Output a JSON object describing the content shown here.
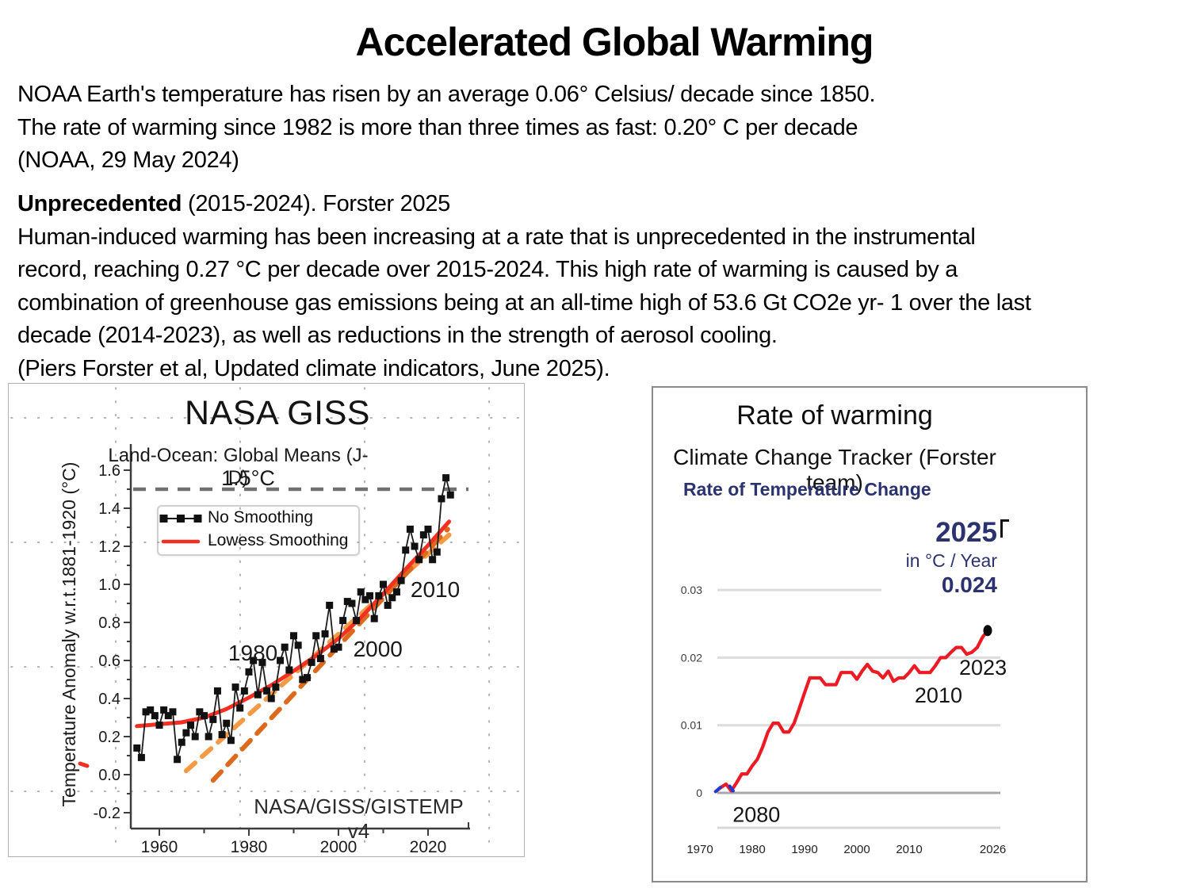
{
  "slide": {
    "title": "Accelerated Global Warming",
    "para1_lines": [
      "NOAA Earth's temperature has risen by an average 0.06° Celsius/ decade since 1850.",
      "The rate of warming since 1982 is more than three times as fast: 0.20° C per decade",
      "(NOAA, 29 May 2024)"
    ],
    "para2_lead": "Unprecedented",
    "para2_lead_rest": " (2015-2024). Forster 2025",
    "para2_lines": [
      "Human-induced warming has been increasing at a rate that is unprecedented in the instrumental",
      "record, reaching 0.27 °C per decade over 2015-2024. This high rate of warming is caused by a",
      "combination of greenhouse gas emissions being at an all-time high of 53.6 Gt CO2e yr- 1 over the last",
      "decade (2014-2023), as well as reductions in the strength of aerosol cooling.",
      "(Piers Forster et al, Updated climate indicators, June 2025)."
    ]
  },
  "chart_data": [
    {
      "type": "line",
      "title": "NASA GISS",
      "subtitle": "Land-Ocean: Global Means (J-D)",
      "threshold": {
        "label": "1.5°C",
        "value": 1.5
      },
      "ylabel": "Temperature Anomaly w.r.t.1881-1920 (°C)",
      "source_label": "NASA/GISS/GISTEMP v4",
      "legend": [
        {
          "label": "No Smoothing"
        },
        {
          "label": "Lowess Smoothing"
        }
      ],
      "xlim": [
        1953.6,
        2029.4
      ],
      "ylim": [
        -0.28,
        1.74
      ],
      "grid": "dotted-overlay",
      "xtick_labels": [
        "1960",
        "1980",
        "2000",
        "2020"
      ],
      "xtick_years": [
        1960,
        1980,
        2000,
        2020
      ],
      "xtick_minor_years": [
        1970,
        1990,
        2010
      ],
      "ytick_labels": [
        "1.6",
        "1.4",
        "1.2",
        "1.0",
        "0.8",
        "0.6",
        "0.4",
        "0.2",
        "0.0",
        "-0.2"
      ],
      "ytick_values": [
        1.6,
        1.4,
        1.2,
        1.0,
        0.8,
        0.6,
        0.4,
        0.2,
        0.0,
        -0.2
      ],
      "annotations": [
        {
          "text": "1980",
          "year": 1980.9,
          "value": 0.642
        },
        {
          "text": "2000",
          "year": 2008.8,
          "value": 0.662
        },
        {
          "text": "2010",
          "year": 2021.6,
          "value": 0.975
        }
      ],
      "series": [
        {
          "name": "No Smoothing",
          "years": [
            1955,
            1956,
            1957,
            1958,
            1959,
            1960,
            1961,
            1962,
            1963,
            1964,
            1965,
            1966,
            1967,
            1968,
            1969,
            1970,
            1971,
            1972,
            1973,
            1974,
            1975,
            1976,
            1977,
            1978,
            1979,
            1980,
            1981,
            1982,
            1983,
            1984,
            1985,
            1986,
            1987,
            1988,
            1989,
            1990,
            1991,
            1992,
            1993,
            1994,
            1995,
            1996,
            1997,
            1998,
            1999,
            2000,
            2001,
            2002,
            2003,
            2004,
            2005,
            2006,
            2007,
            2008,
            2009,
            2010,
            2011,
            2012,
            2013,
            2014,
            2015,
            2016,
            2017,
            2018,
            2019,
            2020,
            2021,
            2022,
            2023,
            2024,
            2025
          ],
          "values": [
            0.14,
            0.09,
            0.33,
            0.34,
            0.31,
            0.26,
            0.34,
            0.31,
            0.33,
            0.08,
            0.17,
            0.22,
            0.26,
            0.2,
            0.33,
            0.31,
            0.2,
            0.29,
            0.44,
            0.21,
            0.27,
            0.18,
            0.46,
            0.35,
            0.44,
            0.54,
            0.6,
            0.42,
            0.59,
            0.44,
            0.4,
            0.46,
            0.6,
            0.67,
            0.55,
            0.73,
            0.68,
            0.5,
            0.51,
            0.59,
            0.73,
            0.61,
            0.74,
            0.89,
            0.66,
            0.67,
            0.81,
            0.91,
            0.9,
            0.81,
            0.96,
            0.92,
            0.94,
            0.82,
            0.94,
            1.0,
            0.89,
            0.93,
            0.96,
            1.02,
            1.18,
            1.29,
            1.2,
            1.13,
            1.26,
            1.29,
            1.13,
            1.17,
            1.45,
            1.56,
            1.47
          ]
        },
        {
          "name": "Lowess Smoothing",
          "points": [
            [
              1955,
              0.255
            ],
            [
              1960,
              0.265
            ],
            [
              1965,
              0.275
            ],
            [
              1970,
              0.3
            ],
            [
              1975,
              0.345
            ],
            [
              1980,
              0.405
            ],
            [
              1985,
              0.47
            ],
            [
              1990,
              0.545
            ],
            [
              1995,
              0.625
            ],
            [
              2000,
              0.715
            ],
            [
              2005,
              0.825
            ],
            [
              2010,
              0.95
            ],
            [
              2015,
              1.08
            ],
            [
              2020,
              1.205
            ],
            [
              2024.7,
              1.33
            ]
          ]
        }
      ],
      "trend_lines": [
        {
          "name": "light-orange-trend",
          "from": [
            1966,
            0.02
          ],
          "to": [
            2024.7,
            1.26
          ],
          "color": "#F59A44"
        },
        {
          "name": "dark-orange-trend",
          "from": [
            1972,
            -0.03
          ],
          "to": [
            2024.4,
            1.29
          ],
          "color": "#DD6A1C"
        }
      ],
      "colors": {
        "data": "#1c1c1c",
        "lowess": "#F13022",
        "threshold": "#707070",
        "axis": "#3c3c3c",
        "grid_dots": "#9a9a9a"
      }
    },
    {
      "type": "line",
      "title": "Rate of warming",
      "subtitle": "Climate Change Tracker (Forster team)",
      "widget_title": "Rate of Temperature Change",
      "readout": {
        "year": "2025",
        "unit": "in °C / Year",
        "value": "0.024"
      },
      "ytick_labels": [
        "0.03",
        "0.02",
        "0.01",
        "0"
      ],
      "ytick_values": [
        0.03,
        0.02,
        0.01,
        0
      ],
      "xtick_labels": [
        "1970",
        "1980",
        "1990",
        "2000",
        "2010",
        "2026"
      ],
      "xtick_years": [
        1970,
        1980,
        1990,
        2000,
        2010,
        2026
      ],
      "annotations": [
        {
          "text": "2080",
          "year": 1980.8,
          "value": -0.0032
        },
        {
          "text": "2010",
          "year": 2015.6,
          "value": 0.0144
        },
        {
          "text": "2023",
          "year": 2024.1,
          "value": 0.0185
        }
      ],
      "years": [
        1973,
        1974,
        1975,
        1976,
        1977,
        1978,
        1979,
        1980,
        1981,
        1982,
        1983,
        1984,
        1985,
        1986,
        1987,
        1988,
        1989,
        1990,
        1991,
        1992,
        1993,
        1994,
        1995,
        1996,
        1997,
        1998,
        1999,
        2000,
        2001,
        2002,
        2003,
        2004,
        2005,
        2006,
        2007,
        2008,
        2009,
        2010,
        2011,
        2012,
        2013,
        2014,
        2015,
        2016,
        2017,
        2018,
        2019,
        2020,
        2021,
        2022,
        2023,
        2024,
        2025
      ],
      "values": [
        0.0002,
        0.0008,
        0.0013,
        0.0003,
        0.0015,
        0.0028,
        0.0028,
        0.004,
        0.005,
        0.0068,
        0.009,
        0.0103,
        0.0103,
        0.009,
        0.009,
        0.0103,
        0.0125,
        0.0148,
        0.017,
        0.017,
        0.017,
        0.016,
        0.016,
        0.016,
        0.0178,
        0.0178,
        0.0178,
        0.0168,
        0.018,
        0.019,
        0.018,
        0.0178,
        0.017,
        0.018,
        0.0165,
        0.017,
        0.017,
        0.0178,
        0.0188,
        0.0178,
        0.0178,
        0.0178,
        0.0188,
        0.02,
        0.02,
        0.0208,
        0.0215,
        0.0215,
        0.0205,
        0.0208,
        0.0215,
        0.023,
        0.024
      ],
      "endpoint": {
        "year": 2025,
        "value": 0.024
      },
      "colors": {
        "line": "#EC1B23",
        "start_segment": "#1F3BD6",
        "accent": "#2b3270",
        "grid": "#DCDCDC",
        "zero_grid": "#A8A8A8",
        "endpoint_dot": "#0a0a0a"
      }
    }
  ]
}
